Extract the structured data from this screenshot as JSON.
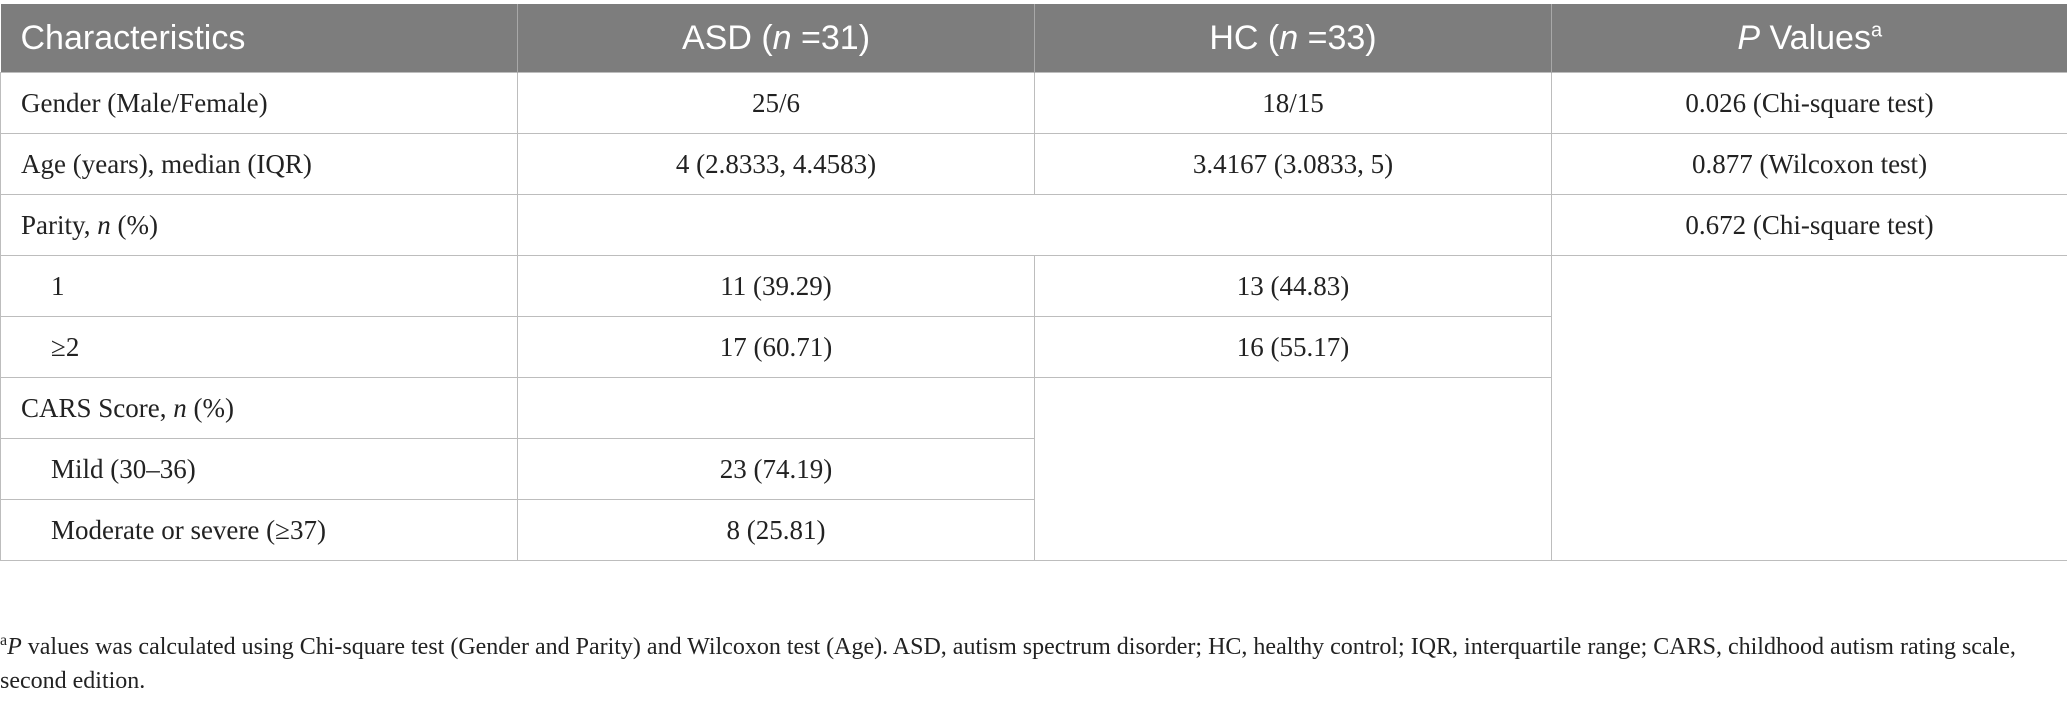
{
  "table": {
    "headers": {
      "characteristics": "Characteristics",
      "asd_prefix": "ASD (",
      "asd_n": "n",
      "asd_suffix": " =31)",
      "hc_prefix": "HC (",
      "hc_n": "n",
      "hc_suffix": " =33)",
      "p_italic": "P",
      "p_rest": " Values",
      "p_sup": "a"
    },
    "gender": {
      "label": "Gender (Male/Female)",
      "asd": "25/6",
      "hc": "18/15",
      "p": "0.026 (Chi-square test)"
    },
    "age": {
      "label": "Age (years), median (IQR)",
      "asd": "4 (2.8333, 4.4583)",
      "hc": "3.4167 (3.0833, 5)",
      "p": "0.877 (Wilcoxon test)"
    },
    "parity": {
      "label_prefix": "Parity, ",
      "label_n": "n",
      "label_suffix": " (%)",
      "p": "0.672 (Chi-square test)",
      "rows": [
        {
          "label": "1",
          "asd": "11 (39.29)",
          "hc": "13 (44.83)"
        },
        {
          "label": "≥2",
          "asd": "17 (60.71)",
          "hc": "16 (55.17)"
        }
      ]
    },
    "cars": {
      "label_prefix": "CARS Score, ",
      "label_n": "n",
      "label_suffix": " (%)",
      "rows": [
        {
          "label": "Mild (30–36)",
          "asd": "23 (74.19)"
        },
        {
          "label": "Moderate or severe (≥37)",
          "asd": "8 (25.81)"
        }
      ]
    }
  },
  "footnote": {
    "sup": "a",
    "italic": "P",
    "text": " values was calculated using Chi-square test (Gender and Parity) and Wilcoxon test (Age). ASD, autism spectrum disorder; HC, healthy control; IQR, interquartile range; CARS, childhood autism rating scale, second edition."
  }
}
